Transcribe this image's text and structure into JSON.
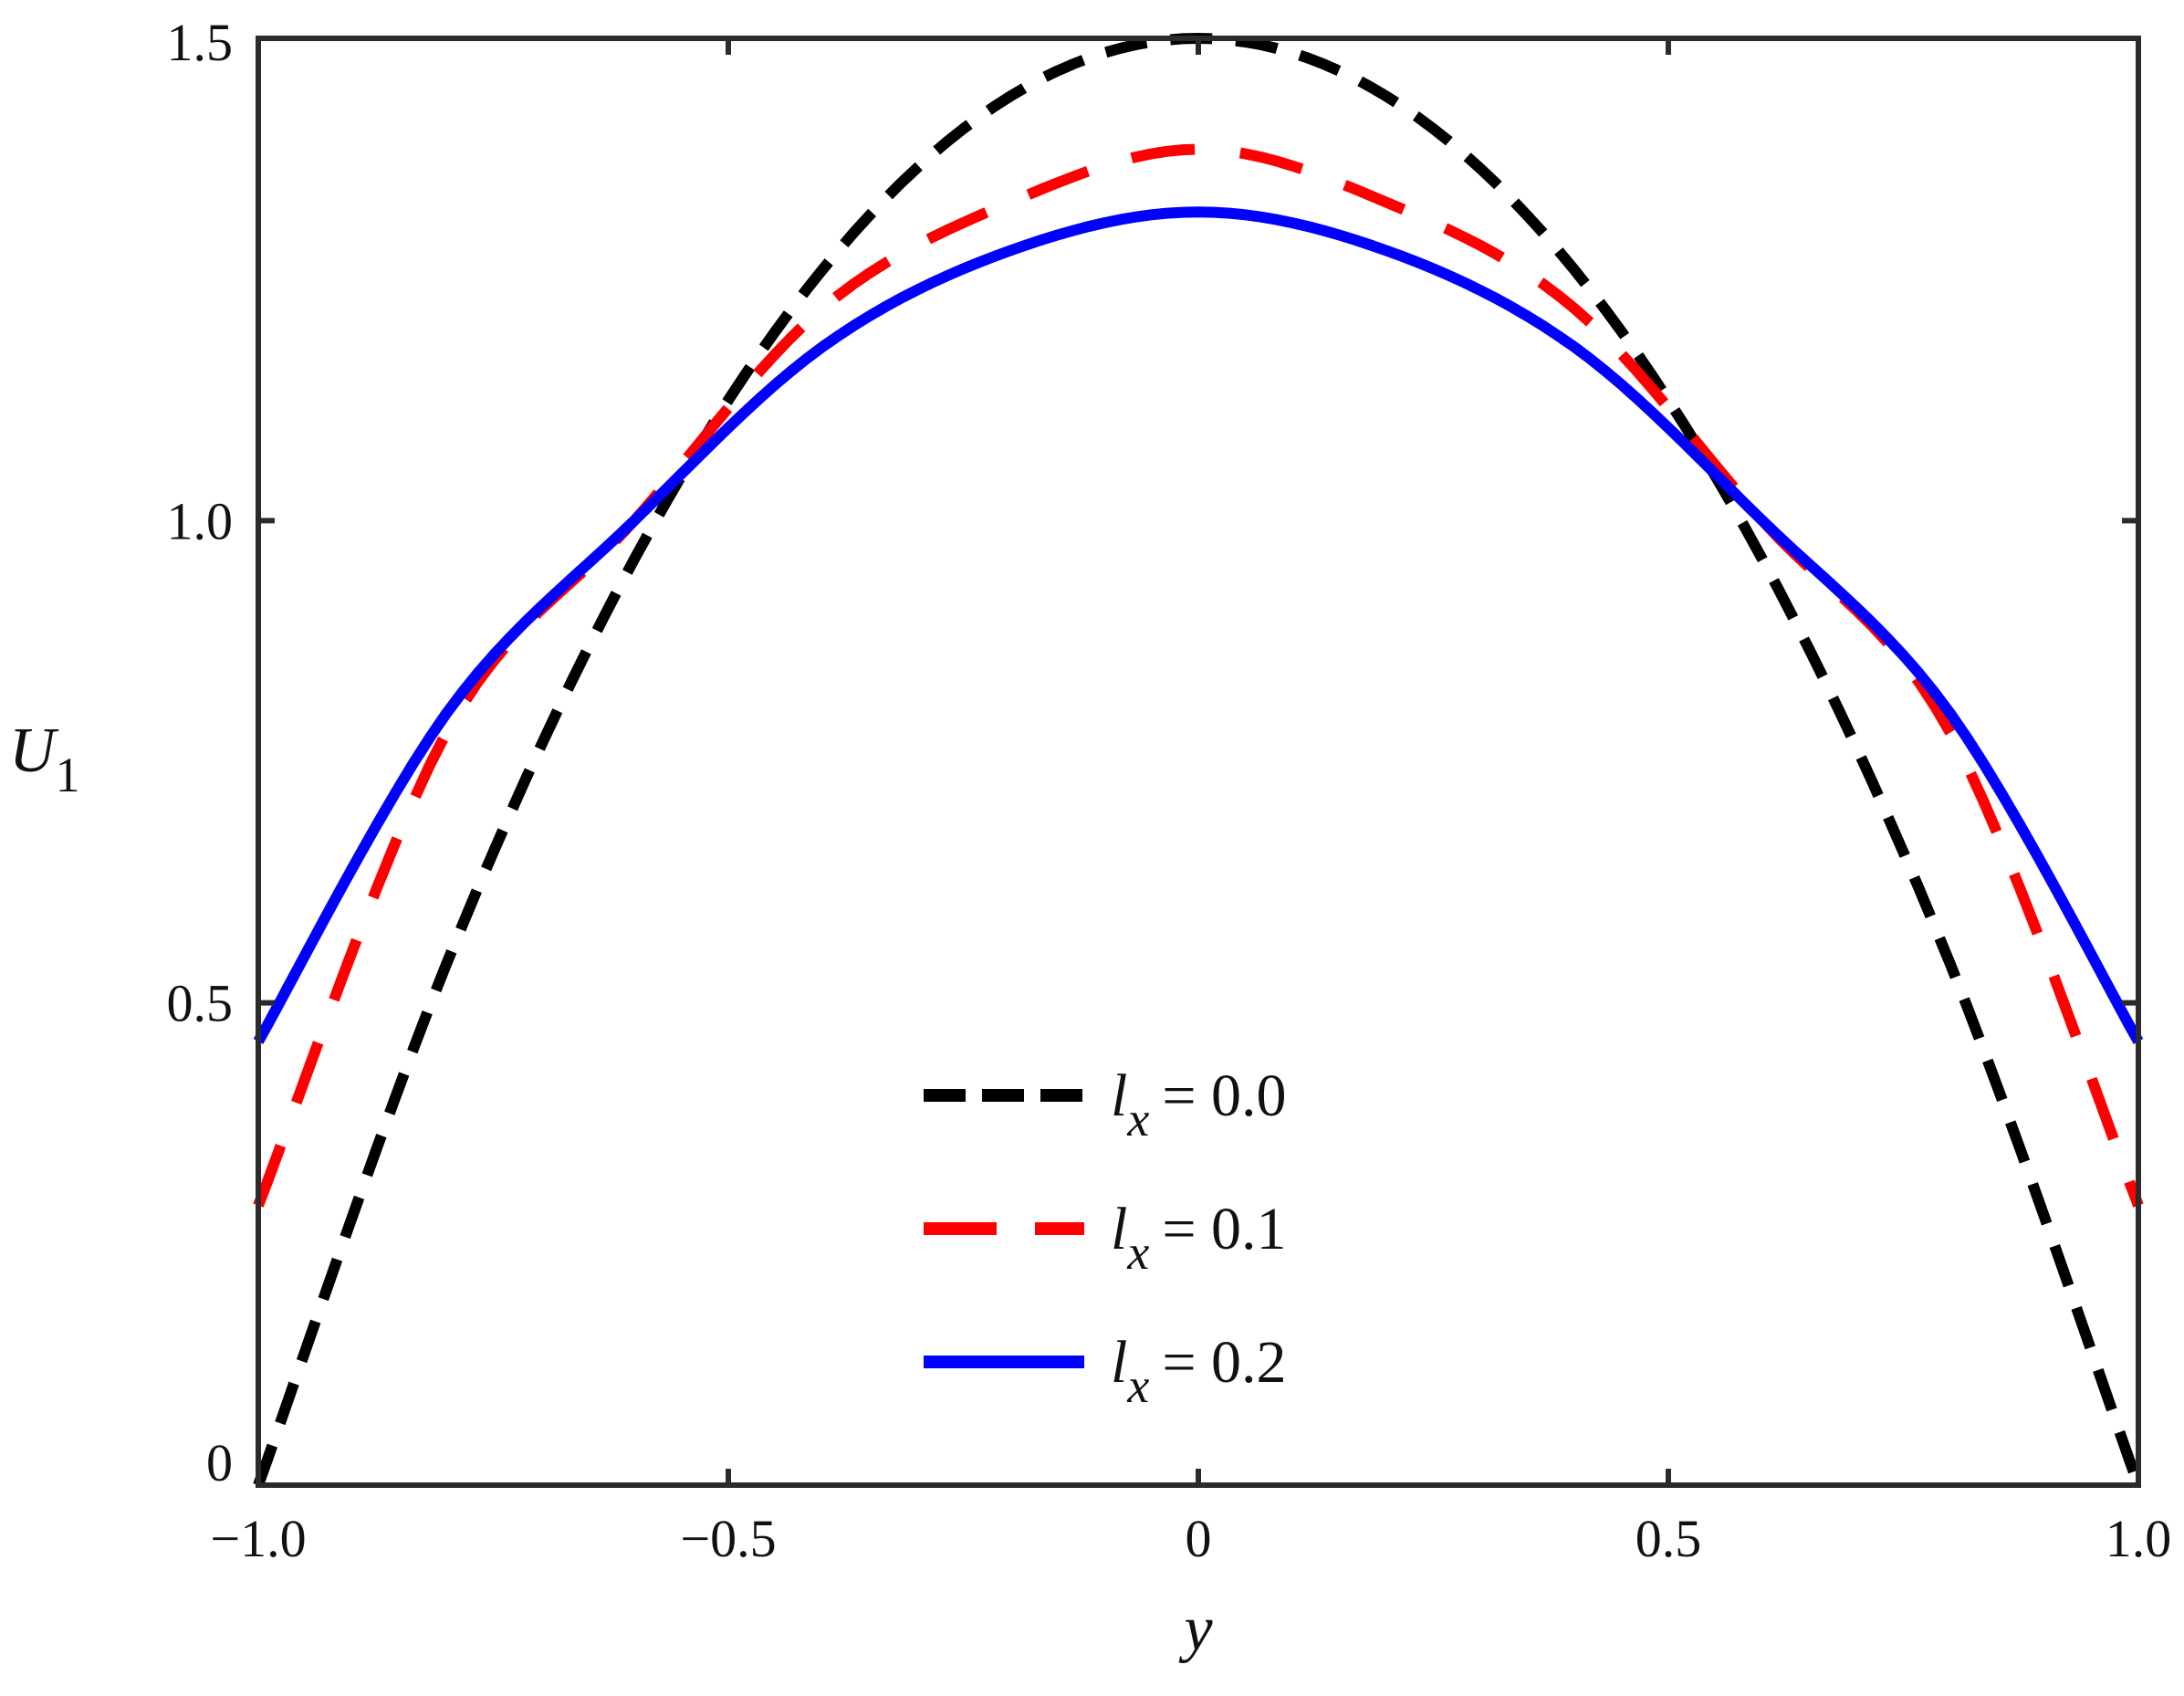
{
  "chart_data": {
    "type": "line",
    "xlabel": "y",
    "ylabel": "U",
    "ylabel_subscript": "1",
    "xlim": [
      -1.0,
      1.0
    ],
    "ylim": [
      0,
      1.5
    ],
    "x_ticks": [
      {
        "value": -1.0,
        "label": "−1.0"
      },
      {
        "value": -0.5,
        "label": "−0.5"
      },
      {
        "value": 0,
        "label": "0"
      },
      {
        "value": 0.5,
        "label": "0.5"
      },
      {
        "value": 1.0,
        "label": "1.0"
      }
    ],
    "y_ticks": [
      {
        "value": 0,
        "label": "0"
      },
      {
        "value": 0.5,
        "label": "0.5"
      },
      {
        "value": 1.0,
        "label": "1.0"
      },
      {
        "value": 1.5,
        "label": "1.5"
      }
    ],
    "legend_position": "bottom-center",
    "grid": false,
    "series": [
      {
        "name": "l_x = 0.0",
        "legend_var": "l",
        "legend_sub": "x",
        "legend_value": "= 0.0",
        "color": "#000000",
        "style": "dashed-short",
        "x": [
          -1.0,
          -0.8,
          -0.6,
          -0.4,
          -0.2,
          0.0,
          0.2,
          0.4,
          0.6,
          0.8,
          1.0
        ],
        "y": [
          0.0,
          0.54,
          0.96,
          1.26,
          1.44,
          1.5,
          1.44,
          1.26,
          0.96,
          0.54,
          0.0
        ]
      },
      {
        "name": "l_x = 0.1",
        "legend_var": "l",
        "legend_sub": "x",
        "legend_value": "= 0.1",
        "color": "#ff0000",
        "style": "dashed-long",
        "x": [
          -1.0,
          -0.8,
          -0.6,
          -0.4,
          -0.2,
          0.0,
          0.2,
          0.4,
          0.6,
          0.8,
          1.0
        ],
        "y": [
          0.29,
          0.78,
          1.0,
          1.22,
          1.33,
          1.385,
          1.33,
          1.22,
          1.0,
          0.78,
          0.29
        ]
      },
      {
        "name": "l_x = 0.2",
        "legend_var": "l",
        "legend_sub": "x",
        "legend_value": "= 0.2",
        "color": "#0000ff",
        "style": "solid",
        "x": [
          -1.0,
          -0.8,
          -0.6,
          -0.4,
          -0.2,
          0.0,
          0.2,
          0.4,
          0.6,
          0.8,
          1.0
        ],
        "y": [
          0.46,
          0.8,
          1.0,
          1.18,
          1.28,
          1.32,
          1.28,
          1.18,
          1.0,
          0.8,
          0.46
        ]
      }
    ]
  }
}
